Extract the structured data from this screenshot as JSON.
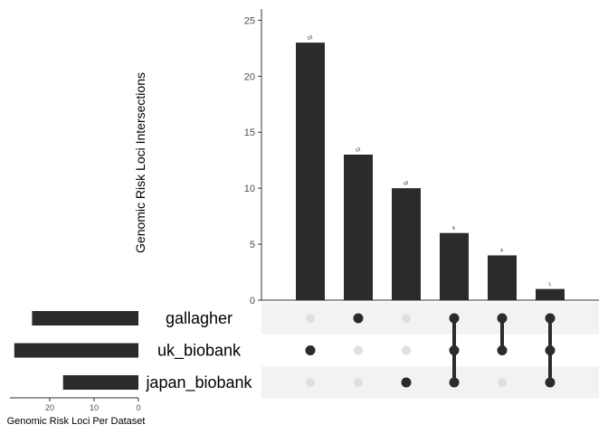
{
  "chart_data": {
    "type": "bar",
    "subtype": "upset",
    "intersection_ylabel": "Genomic Risk Loci Intersections",
    "intersection_ylim": [
      0,
      26
    ],
    "intersection_yticks": [
      "0",
      "5",
      "10",
      "15",
      "20",
      "25"
    ],
    "intersections": [
      {
        "value": 23,
        "label": "23",
        "members": [
          "uk_biobank"
        ]
      },
      {
        "value": 13,
        "label": "13",
        "members": [
          "gallagher"
        ]
      },
      {
        "value": 10,
        "label": "10",
        "members": [
          "japan_biobank"
        ]
      },
      {
        "value": 6,
        "label": "6",
        "members": [
          "gallagher",
          "uk_biobank",
          "japan_biobank"
        ]
      },
      {
        "value": 4,
        "label": "4",
        "members": [
          "gallagher",
          "uk_biobank"
        ]
      },
      {
        "value": 1,
        "label": "1",
        "members": [
          "gallagher",
          "uk_biobank",
          "japan_biobank"
        ]
      }
    ],
    "sets": [
      {
        "name": "gallagher",
        "size": 24
      },
      {
        "name": "uk_biobank",
        "size": 28
      },
      {
        "name": "japan_biobank",
        "size": 17
      }
    ],
    "set_xlabel": "Genomic Risk Loci Per Dataset",
    "set_xticks": [
      "20",
      "10",
      "0"
    ],
    "set_xlim": [
      0,
      29
    ],
    "colors": {
      "bar": "#2b2b2b",
      "dot_active": "#2b2b2b",
      "dot_inactive": "#e0e0e0",
      "stripe": "#f2f2f2",
      "axis": "#333333"
    }
  }
}
